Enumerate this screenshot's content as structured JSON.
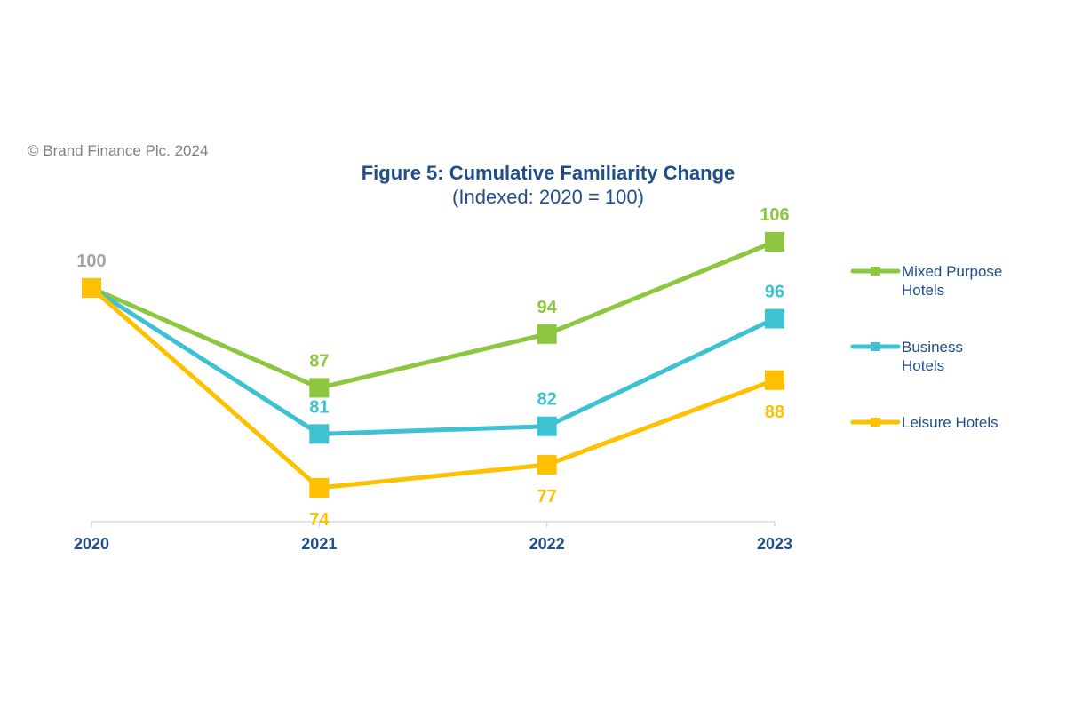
{
  "copyright": "© Brand Finance Plc. 2024",
  "chart_data": {
    "type": "line",
    "title": "Figure 5: Cumulative Familiarity Change",
    "subtitle": "(Indexed: 2020 = 100)",
    "xlabel": "",
    "ylabel": "",
    "categories": [
      "2020",
      "2021",
      "2022",
      "2023"
    ],
    "ylim": [
      69.6,
      106
    ],
    "grid": false,
    "legend_position": "right",
    "start_label": {
      "text": "100",
      "color": "#a6a1ac"
    },
    "series": [
      {
        "name": "Mixed Purpose Hotels",
        "legend_lines": [
          "Mixed Purpose",
          "Hotels"
        ],
        "color": "#8dc63f",
        "values": [
          100,
          87,
          94,
          106
        ],
        "labels": [
          "",
          "87",
          "94",
          "106"
        ],
        "label_position": "above"
      },
      {
        "name": "Business Hotels",
        "legend_lines": [
          "Business",
          "Hotels"
        ],
        "color": "#3ec1d3",
        "values": [
          100,
          81,
          82,
          96
        ],
        "labels": [
          "",
          "81",
          "82",
          "96"
        ],
        "label_position": "above"
      },
      {
        "name": "Leisure Hotels",
        "legend_lines": [
          "Leisure Hotels"
        ],
        "color": "#ffc000",
        "values": [
          100,
          74,
          77,
          88
        ],
        "labels": [
          "",
          "74",
          "77",
          "88"
        ],
        "label_position": "below"
      }
    ]
  }
}
